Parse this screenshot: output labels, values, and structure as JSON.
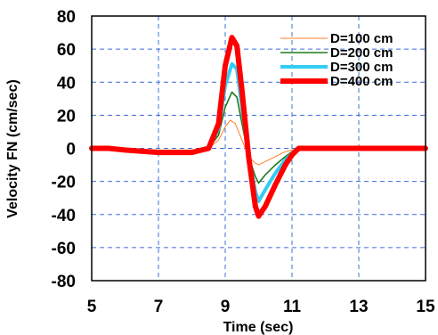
{
  "chart_data": {
    "type": "line",
    "xlabel": "Time (sec)",
    "ylabel": "Velocity FN (cm/sec)",
    "xlim": [
      5,
      15
    ],
    "ylim": [
      -80,
      80
    ],
    "x_ticks": [
      5,
      7,
      9,
      11,
      13,
      15
    ],
    "y_ticks": [
      -80,
      -60,
      -40,
      -20,
      0,
      20,
      40,
      60,
      80
    ],
    "grid": true,
    "legend_position": "top-right",
    "series": [
      {
        "name": "D=100 cm",
        "color": "#FF7F27",
        "line_width": 1,
        "points": [
          [
            5,
            0
          ],
          [
            5.5,
            0
          ],
          [
            6,
            -0.5
          ],
          [
            7,
            -1
          ],
          [
            8,
            -1
          ],
          [
            8.5,
            0
          ],
          [
            8.8,
            5
          ],
          [
            9.0,
            13
          ],
          [
            9.15,
            17
          ],
          [
            9.3,
            15
          ],
          [
            9.5,
            5
          ],
          [
            9.7,
            -5
          ],
          [
            9.9,
            -9
          ],
          [
            10.0,
            -10
          ],
          [
            10.2,
            -8
          ],
          [
            10.5,
            -5
          ],
          [
            10.8,
            -2
          ],
          [
            11.0,
            -1
          ],
          [
            11.2,
            0
          ],
          [
            12,
            0
          ],
          [
            15,
            0
          ]
        ]
      },
      {
        "name": "D=200 cm",
        "color": "#1E7B1E",
        "line_width": 1.6,
        "points": [
          [
            5,
            0
          ],
          [
            5.5,
            0
          ],
          [
            6,
            -0.5
          ],
          [
            7,
            -1.5
          ],
          [
            8,
            -1.5
          ],
          [
            8.5,
            0
          ],
          [
            8.8,
            8
          ],
          [
            9.0,
            25
          ],
          [
            9.2,
            34
          ],
          [
            9.35,
            31
          ],
          [
            9.5,
            15
          ],
          [
            9.7,
            -5
          ],
          [
            9.9,
            -17
          ],
          [
            10.0,
            -21
          ],
          [
            10.2,
            -16
          ],
          [
            10.5,
            -10
          ],
          [
            10.8,
            -5
          ],
          [
            11.0,
            -2
          ],
          [
            11.2,
            0
          ],
          [
            12,
            0
          ],
          [
            15,
            0
          ]
        ]
      },
      {
        "name": "D=300 cm",
        "color": "#33CCF2",
        "line_width": 4,
        "points": [
          [
            5,
            0
          ],
          [
            5.5,
            0
          ],
          [
            6,
            -1
          ],
          [
            7,
            -2
          ],
          [
            8,
            -2
          ],
          [
            8.5,
            0
          ],
          [
            8.8,
            12
          ],
          [
            9.0,
            38
          ],
          [
            9.2,
            51
          ],
          [
            9.35,
            48
          ],
          [
            9.5,
            25
          ],
          [
            9.7,
            -5
          ],
          [
            9.9,
            -26
          ],
          [
            10.0,
            -32
          ],
          [
            10.2,
            -25
          ],
          [
            10.5,
            -15
          ],
          [
            10.8,
            -7
          ],
          [
            11.0,
            -3
          ],
          [
            11.2,
            0
          ],
          [
            12,
            0
          ],
          [
            15,
            0
          ]
        ]
      },
      {
        "name": "D=400 cm",
        "color": "#FF0000",
        "line_width": 6,
        "points": [
          [
            5,
            0
          ],
          [
            5.5,
            0
          ],
          [
            6,
            -1
          ],
          [
            7,
            -2.5
          ],
          [
            8,
            -2.5
          ],
          [
            8.5,
            0
          ],
          [
            8.8,
            15
          ],
          [
            9.0,
            50
          ],
          [
            9.2,
            67
          ],
          [
            9.35,
            62
          ],
          [
            9.5,
            35
          ],
          [
            9.7,
            -5
          ],
          [
            9.9,
            -35
          ],
          [
            10.0,
            -41
          ],
          [
            10.2,
            -35
          ],
          [
            10.5,
            -22
          ],
          [
            10.8,
            -10
          ],
          [
            11.0,
            -4
          ],
          [
            11.2,
            0
          ],
          [
            12,
            0
          ],
          [
            15,
            0
          ]
        ]
      }
    ]
  }
}
